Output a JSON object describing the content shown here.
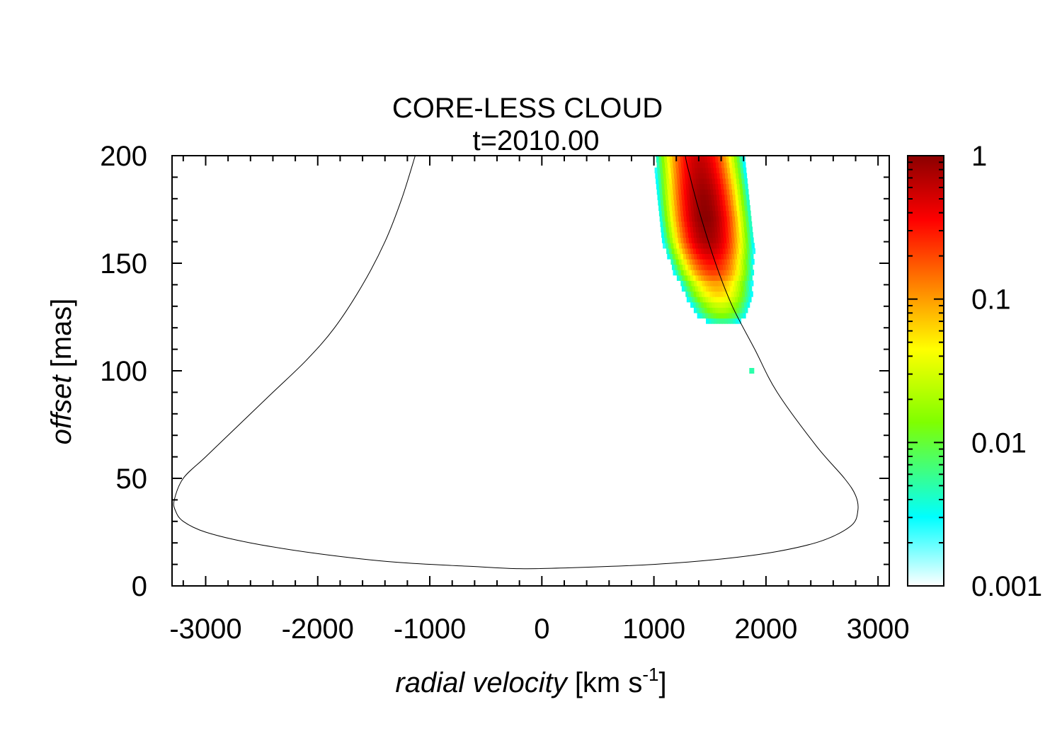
{
  "chart_data": {
    "type": "heatmap",
    "title": "CORE-LESS CLOUD",
    "subtitle": "t=2010.00",
    "xlabel": {
      "italic": "radial velocity",
      "plain": " [km s",
      "sup": "-1",
      "close": "]"
    },
    "ylabel": {
      "italic": "offset",
      "plain": " [mas]"
    },
    "xlim": [
      -3300,
      3100
    ],
    "ylim": [
      0,
      200
    ],
    "xticks": [
      -3000,
      -2000,
      -1000,
      0,
      1000,
      2000,
      3000
    ],
    "xtick_labels": [
      "-3000",
      "-2000",
      "-1000",
      "0",
      "1000",
      "2000",
      "3000"
    ],
    "yticks": [
      0,
      50,
      100,
      150,
      200
    ],
    "ytick_labels": [
      "0",
      "50",
      "100",
      "150",
      "200"
    ],
    "colorbar": {
      "scale": "log",
      "range": [
        0.001,
        1
      ],
      "ticks": [
        0.001,
        0.01,
        0.1,
        1
      ],
      "tick_labels": [
        "0.001",
        "0.01",
        "0.1",
        "1"
      ],
      "colors": [
        "#ffffff",
        "#00ffff",
        "#7fff00",
        "#ffff00",
        "#ff8000",
        "#ff0000",
        "#8b0000"
      ]
    },
    "envelope_curve": {
      "x": [
        -1130,
        -1250,
        -1400,
        -1600,
        -1850,
        -2100,
        -2400,
        -2700,
        -3000,
        -3200,
        -3280,
        -3270,
        -3200,
        -3000,
        -2600,
        -2000,
        -1300,
        -600,
        -200,
        300,
        1000,
        1600,
        2100,
        2500,
        2760,
        2820,
        2800,
        2700,
        2450,
        2100,
        1900,
        1700,
        1550,
        1400,
        1300,
        1280
      ],
      "y": [
        200,
        180,
        160,
        140,
        120,
        105,
        90,
        75,
        60,
        50,
        40,
        35,
        30,
        25,
        20,
        15,
        11,
        9,
        8,
        8.5,
        10,
        12.5,
        16,
        21,
        28,
        35,
        42,
        50,
        65,
        90,
        110,
        130,
        150,
        175,
        195,
        200
      ]
    },
    "emission_ridge": {
      "offset": [
        122,
        130,
        140,
        150,
        160,
        170,
        180,
        190,
        200
      ],
      "velocity_center": [
        1600,
        1580,
        1540,
        1500,
        1470,
        1450,
        1430,
        1410,
        1390
      ],
      "peak_intensity": [
        0.006,
        0.03,
        0.1,
        0.35,
        0.8,
        1.0,
        0.9,
        0.7,
        0.55
      ]
    },
    "isolated_points": [
      {
        "x": 1870,
        "y": 100,
        "value": 0.005
      }
    ]
  }
}
